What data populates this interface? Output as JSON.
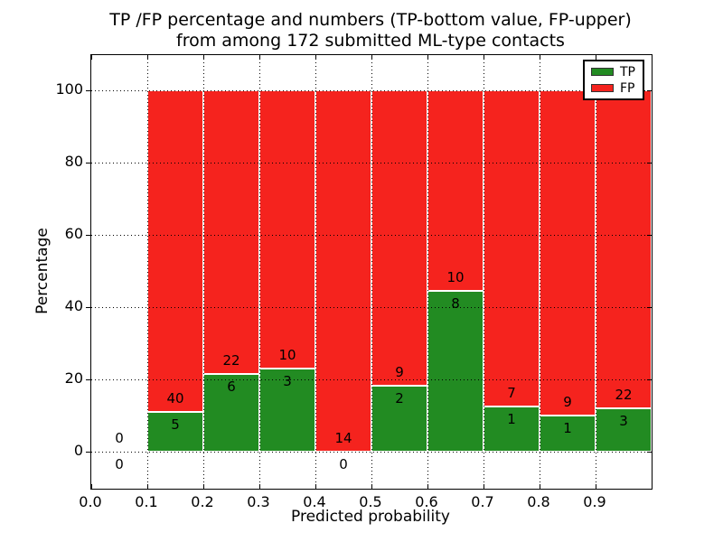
{
  "title": {
    "line1": "TP /FP percentage and numbers (TP-bottom value, FP-upper)",
    "line2": "from among 172 submitted ML-type contacts"
  },
  "axes": {
    "xlabel": "Predicted probability",
    "ylabel": "Percentage",
    "xticks": [
      {
        "value": 0.0,
        "label": "0.0"
      },
      {
        "value": 0.1,
        "label": "0.1"
      },
      {
        "value": 0.2,
        "label": "0.2"
      },
      {
        "value": 0.3,
        "label": "0.3"
      },
      {
        "value": 0.4,
        "label": "0.4"
      },
      {
        "value": 0.5,
        "label": "0.5"
      },
      {
        "value": 0.6,
        "label": "0.6"
      },
      {
        "value": 0.7,
        "label": "0.7"
      },
      {
        "value": 0.8,
        "label": "0.8"
      },
      {
        "value": 0.9,
        "label": "0.9"
      }
    ],
    "yticks": [
      {
        "value": 0,
        "label": "0"
      },
      {
        "value": 20,
        "label": "20"
      },
      {
        "value": 40,
        "label": "40"
      },
      {
        "value": 60,
        "label": "60"
      },
      {
        "value": 80,
        "label": "80"
      },
      {
        "value": 100,
        "label": "100"
      }
    ],
    "xlim": [
      0.0,
      1.0
    ],
    "ylim": [
      -10.25,
      109.75
    ],
    "grid": "dotted"
  },
  "legend": {
    "position": "upper right",
    "entries": [
      {
        "label": "TP",
        "color": "#228b22"
      },
      {
        "label": "FP",
        "color": "#f5231e"
      }
    ]
  },
  "chart_data": {
    "type": "bar",
    "stacked": true,
    "normalized_to": 100,
    "total_contacts": 172,
    "annotation_rule": "TP count printed below the TP/FP boundary, FP count printed above it",
    "bins": [
      {
        "range": [
          0.0,
          0.1
        ],
        "tp": 0,
        "fp": 0
      },
      {
        "range": [
          0.1,
          0.2
        ],
        "tp": 5,
        "fp": 40
      },
      {
        "range": [
          0.2,
          0.3
        ],
        "tp": 6,
        "fp": 22
      },
      {
        "range": [
          0.3,
          0.4
        ],
        "tp": 3,
        "fp": 10
      },
      {
        "range": [
          0.4,
          0.5
        ],
        "tp": 0,
        "fp": 14
      },
      {
        "range": [
          0.5,
          0.6
        ],
        "tp": 2,
        "fp": 9
      },
      {
        "range": [
          0.6,
          0.7
        ],
        "tp": 8,
        "fp": 10
      },
      {
        "range": [
          0.7,
          0.8
        ],
        "tp": 1,
        "fp": 7
      },
      {
        "range": [
          0.8,
          0.9
        ],
        "tp": 1,
        "fp": 9
      },
      {
        "range": [
          0.9,
          1.0
        ],
        "tp": 3,
        "fp": 22
      }
    ]
  },
  "colors": {
    "tp": "#228b22",
    "fp": "#f5231e",
    "grid": "#000000",
    "background": "#ffffff",
    "text": "#000000"
  }
}
